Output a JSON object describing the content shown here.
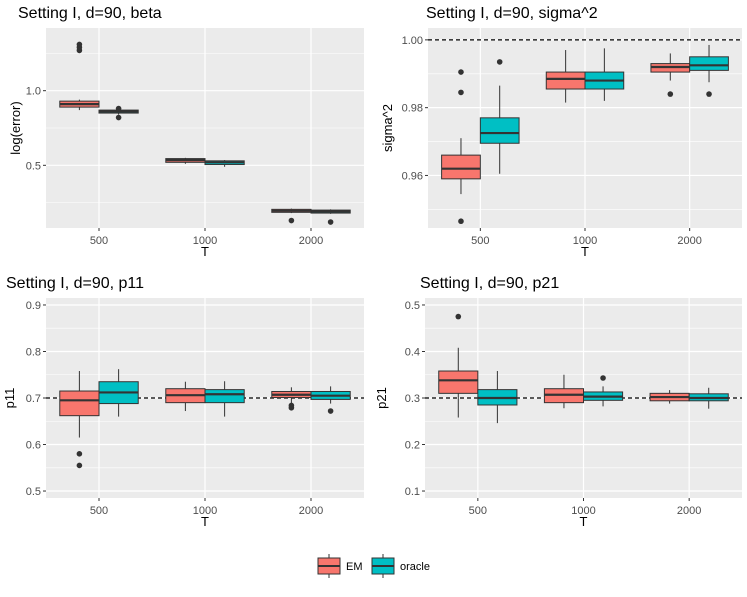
{
  "chart_data": [
    {
      "type": "boxplot",
      "title": "Setting I, d=90, beta",
      "xlabel": "T",
      "ylabel": "log(error)",
      "categories": [
        "500",
        "1000",
        "2000"
      ],
      "ylim": [
        0.08,
        1.42
      ],
      "yticks": [
        0.5,
        1.0
      ],
      "ytick_labels": [
        "0.5",
        "1.0"
      ],
      "reference_line": null,
      "series": [
        {
          "name": "EM",
          "color": "#F8766D",
          "boxes": [
            {
              "whisker_low": 0.87,
              "q1": 0.89,
              "median": 0.91,
              "q3": 0.93,
              "whisker_high": 0.94,
              "outliers": [
                1.27,
                1.29,
                1.31
              ]
            },
            {
              "whisker_low": 0.51,
              "q1": 0.52,
              "median": 0.535,
              "q3": 0.545,
              "whisker_high": 0.55,
              "outliers": []
            },
            {
              "whisker_low": 0.18,
              "q1": 0.185,
              "median": 0.195,
              "q3": 0.205,
              "whisker_high": 0.21,
              "outliers": [
                0.13
              ]
            }
          ]
        },
        {
          "name": "oracle",
          "color": "#00BFC4",
          "boxes": [
            {
              "whisker_low": 0.84,
              "q1": 0.85,
              "median": 0.86,
              "q3": 0.87,
              "whisker_high": 0.875,
              "outliers": [
                0.82,
                0.88
              ]
            },
            {
              "whisker_low": 0.49,
              "q1": 0.505,
              "median": 0.52,
              "q3": 0.53,
              "whisker_high": 0.535,
              "outliers": []
            },
            {
              "whisker_low": 0.175,
              "q1": 0.18,
              "median": 0.19,
              "q3": 0.2,
              "whisker_high": 0.205,
              "outliers": [
                0.12
              ]
            }
          ]
        }
      ]
    },
    {
      "type": "boxplot",
      "title": "Setting I, d=90, sigma^2",
      "xlabel": "T",
      "ylabel": "sigma^2",
      "categories": [
        "500",
        "1000",
        "2000"
      ],
      "ylim": [
        0.9445,
        1.0035
      ],
      "yticks": [
        0.96,
        0.98,
        1.0
      ],
      "ytick_labels": [
        "0.96",
        "0.98",
        "1.00"
      ],
      "reference_line": 1.0,
      "series": [
        {
          "name": "EM",
          "color": "#F8766D",
          "boxes": [
            {
              "whisker_low": 0.9545,
              "q1": 0.959,
              "median": 0.962,
              "q3": 0.966,
              "whisker_high": 0.971,
              "outliers": [
                0.9465,
                0.9845,
                0.9905
              ]
            },
            {
              "whisker_low": 0.9815,
              "q1": 0.9855,
              "median": 0.9885,
              "q3": 0.9905,
              "whisker_high": 0.997,
              "outliers": []
            },
            {
              "whisker_low": 0.988,
              "q1": 0.9905,
              "median": 0.992,
              "q3": 0.993,
              "whisker_high": 0.996,
              "outliers": [
                0.984
              ]
            }
          ]
        },
        {
          "name": "oracle",
          "color": "#00BFC4",
          "boxes": [
            {
              "whisker_low": 0.9605,
              "q1": 0.9695,
              "median": 0.9725,
              "q3": 0.977,
              "whisker_high": 0.9865,
              "outliers": [
                0.9935
              ]
            },
            {
              "whisker_low": 0.982,
              "q1": 0.9855,
              "median": 0.988,
              "q3": 0.9905,
              "whisker_high": 0.9975,
              "outliers": []
            },
            {
              "whisker_low": 0.9875,
              "q1": 0.991,
              "median": 0.9925,
              "q3": 0.995,
              "whisker_high": 0.9985,
              "outliers": [
                0.984
              ]
            }
          ]
        }
      ]
    },
    {
      "type": "boxplot",
      "title": "Setting I, d=90, p11",
      "xlabel": "T",
      "ylabel": "p11",
      "categories": [
        "500",
        "1000",
        "2000"
      ],
      "ylim": [
        0.485,
        0.915
      ],
      "yticks": [
        0.5,
        0.6,
        0.7,
        0.8,
        0.9
      ],
      "ytick_labels": [
        "0.5",
        "0.6",
        "0.7",
        "0.8",
        "0.9"
      ],
      "reference_line": 0.7,
      "series": [
        {
          "name": "EM",
          "color": "#F8766D",
          "boxes": [
            {
              "whisker_low": 0.615,
              "q1": 0.662,
              "median": 0.695,
              "q3": 0.715,
              "whisker_high": 0.758,
              "outliers": [
                0.555,
                0.58
              ]
            },
            {
              "whisker_low": 0.672,
              "q1": 0.69,
              "median": 0.706,
              "q3": 0.72,
              "whisker_high": 0.735,
              "outliers": []
            },
            {
              "whisker_low": 0.688,
              "q1": 0.701,
              "median": 0.707,
              "q3": 0.714,
              "whisker_high": 0.723,
              "outliers": [
                0.679,
                0.684
              ]
            }
          ]
        },
        {
          "name": "oracle",
          "color": "#00BFC4",
          "boxes": [
            {
              "whisker_low": 0.66,
              "q1": 0.688,
              "median": 0.712,
              "q3": 0.735,
              "whisker_high": 0.762,
              "outliers": []
            },
            {
              "whisker_low": 0.66,
              "q1": 0.69,
              "median": 0.708,
              "q3": 0.718,
              "whisker_high": 0.736,
              "outliers": []
            },
            {
              "whisker_low": 0.688,
              "q1": 0.697,
              "median": 0.705,
              "q3": 0.714,
              "whisker_high": 0.725,
              "outliers": [
                0.672
              ]
            }
          ]
        }
      ]
    },
    {
      "type": "boxplot",
      "title": "Setting I, d=90, p21",
      "xlabel": "T",
      "ylabel": "p21",
      "categories": [
        "500",
        "1000",
        "2000"
      ],
      "ylim": [
        0.085,
        0.515
      ],
      "yticks": [
        0.1,
        0.2,
        0.3,
        0.4,
        0.5
      ],
      "ytick_labels": [
        "0.1",
        "0.2",
        "0.3",
        "0.4",
        "0.5"
      ],
      "reference_line": 0.3,
      "series": [
        {
          "name": "EM",
          "color": "#F8766D",
          "boxes": [
            {
              "whisker_low": 0.258,
              "q1": 0.31,
              "median": 0.338,
              "q3": 0.358,
              "whisker_high": 0.408,
              "outliers": [
                0.475
              ]
            },
            {
              "whisker_low": 0.278,
              "q1": 0.29,
              "median": 0.307,
              "q3": 0.32,
              "whisker_high": 0.35,
              "outliers": []
            },
            {
              "whisker_low": 0.288,
              "q1": 0.294,
              "median": 0.302,
              "q3": 0.31,
              "whisker_high": 0.317,
              "outliers": []
            }
          ]
        },
        {
          "name": "oracle",
          "color": "#00BFC4",
          "boxes": [
            {
              "whisker_low": 0.246,
              "q1": 0.285,
              "median": 0.3,
              "q3": 0.318,
              "whisker_high": 0.358,
              "outliers": []
            },
            {
              "whisker_low": 0.282,
              "q1": 0.295,
              "median": 0.303,
              "q3": 0.313,
              "whisker_high": 0.325,
              "outliers": [
                0.343
              ]
            },
            {
              "whisker_low": 0.277,
              "q1": 0.294,
              "median": 0.3,
              "q3": 0.309,
              "whisker_high": 0.322,
              "outliers": []
            }
          ]
        }
      ]
    }
  ],
  "legend": {
    "placement": "bottom",
    "items": [
      {
        "label": "EM",
        "color": "#F8766D"
      },
      {
        "label": "oracle",
        "color": "#00BFC4"
      }
    ]
  },
  "style": {
    "panel_background": "#EBEBEB",
    "grid_color": "#FFFFFF",
    "box_outline": "#333333",
    "reference_line_color": "#000000"
  }
}
